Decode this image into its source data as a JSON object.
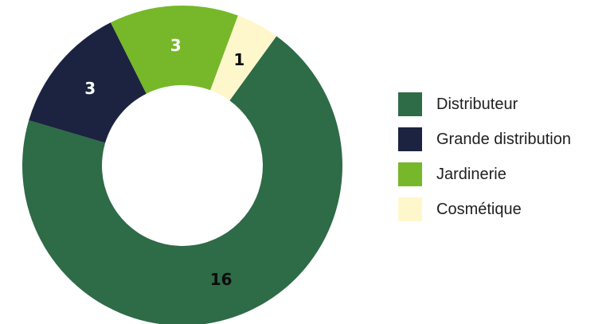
{
  "chart_data": {
    "type": "pie",
    "donut": true,
    "categories": [
      "Distributeur",
      "Grande distribution",
      "Jardinerie",
      "Cosmétique"
    ],
    "values": [
      16,
      3,
      3,
      1
    ],
    "data_labels": [
      "16",
      "3",
      "3",
      "1"
    ],
    "colors": [
      "#2e6b47",
      "#1b2340",
      "#76b82a",
      "#fff7cc"
    ],
    "label_colors": [
      "#0d0d0d",
      "#ffffff",
      "#ffffff",
      "#0d0d0d"
    ],
    "legend_position": "right",
    "start_angle_deg": -54
  }
}
